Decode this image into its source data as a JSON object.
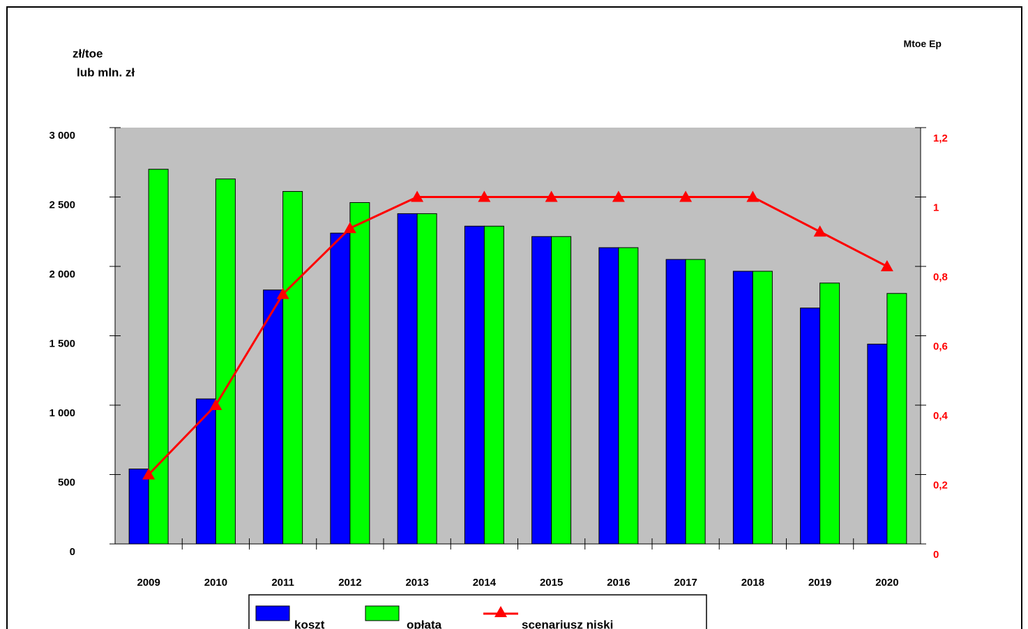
{
  "chart_data": {
    "type": "bar_line",
    "ylabel_line1": "zł/toe",
    "ylabel_line2": "lub mln. zł",
    "y2label": "Mtoe Ep",
    "categories": [
      "2009",
      "2010",
      "2011",
      "2012",
      "2013",
      "2014",
      "2015",
      "2016",
      "2017",
      "2018",
      "2019",
      "2020"
    ],
    "series": [
      {
        "name": "koszt",
        "color": "#0000ff",
        "values": [
          540,
          1045,
          1830,
          2240,
          2380,
          2290,
          2215,
          2135,
          2050,
          1965,
          1700,
          1440
        ]
      },
      {
        "name": "opłata",
        "color": "#00ff00",
        "values": [
          2700,
          2630,
          2540,
          2460,
          2380,
          2290,
          2215,
          2135,
          2050,
          1965,
          1880,
          1805
        ]
      },
      {
        "name": "scenariusz niski",
        "color": "#ff0000",
        "axis": "y2",
        "values": [
          0.2,
          0.4,
          0.72,
          0.91,
          1,
          1,
          1,
          1,
          1,
          1,
          0.9,
          0.8
        ]
      }
    ],
    "ylim": [
      0,
      3000
    ],
    "yticks": [
      0,
      500,
      {
        "value": 1000,
        "label": "1 000"
      },
      {
        "value": 1500,
        "label": "1 500"
      },
      {
        "value": 2000,
        "label": "2 000"
      },
      {
        "value": 2500,
        "label": "2 500"
      },
      {
        "value": 3000,
        "label": "3 000"
      }
    ],
    "y2lim": [
      0,
      1.2
    ],
    "y2ticks": [
      0,
      {
        "value": 0.2,
        "label": "0,2"
      },
      {
        "value": 0.4,
        "label": "0,4"
      },
      {
        "value": 0.6,
        "label": "0,6"
      },
      {
        "value": 0.8,
        "label": "0,8"
      },
      1,
      {
        "value": 1.2,
        "label": "1,2"
      }
    ],
    "plot_background": "#c0c0c0",
    "y2_color": "#ff0000"
  }
}
